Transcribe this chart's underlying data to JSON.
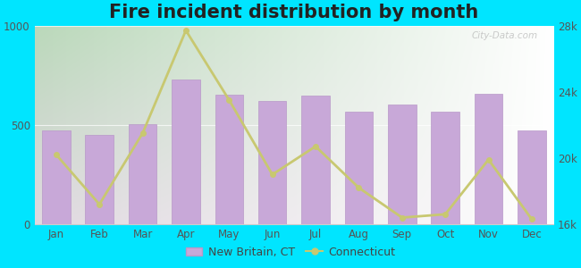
{
  "title": "Fire incident distribution by month",
  "months": [
    "Jan",
    "Feb",
    "Mar",
    "Apr",
    "May",
    "Jun",
    "Jul",
    "Aug",
    "Sep",
    "Oct",
    "Nov",
    "Dec"
  ],
  "new_britain_values": [
    470,
    450,
    505,
    730,
    650,
    620,
    645,
    565,
    600,
    565,
    655,
    470
  ],
  "connecticut_values": [
    20200,
    17200,
    21500,
    27700,
    23500,
    19000,
    20700,
    18200,
    16400,
    16600,
    19900,
    16300
  ],
  "bar_color": "#c8a8d8",
  "bar_edge_color": "#b898c8",
  "line_color": "#c8c870",
  "background_color": "#00e5ff",
  "ylim_left": [
    0,
    1000
  ],
  "ylim_right": [
    16000,
    28000
  ],
  "yticks_left": [
    0,
    500,
    1000
  ],
  "yticks_right": [
    16000,
    20000,
    24000,
    28000
  ],
  "ytick_labels_right": [
    "16k",
    "20k",
    "24k",
    "28k"
  ],
  "legend_label_bar": "New Britain, CT",
  "legend_label_line": "Connecticut",
  "watermark": "City-Data.com",
  "title_fontsize": 15
}
